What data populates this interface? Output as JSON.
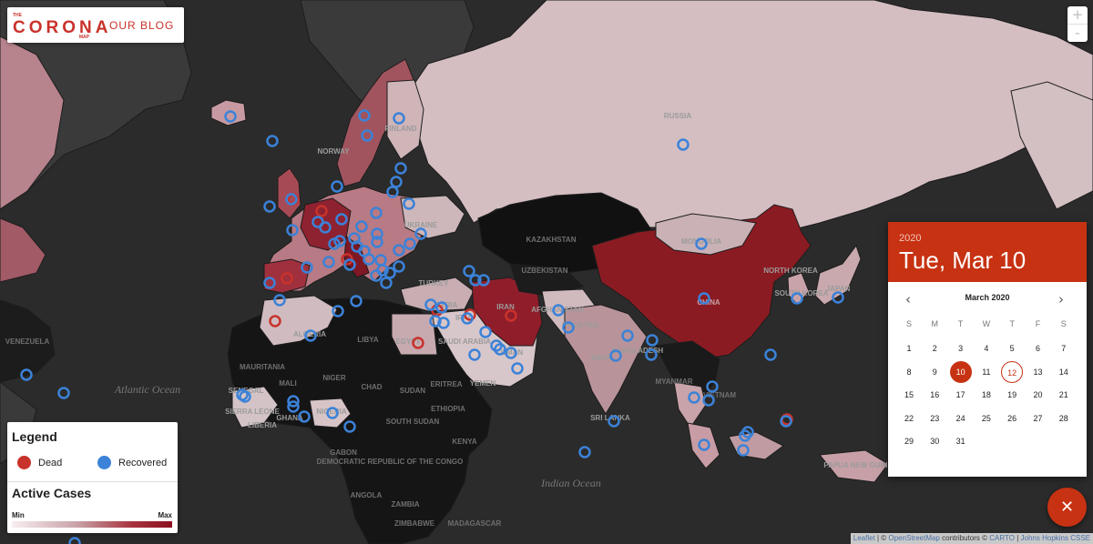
{
  "brand": {
    "logo_top": "THE",
    "logo_word": "CORONA",
    "logo_bottom": "MAP",
    "blog_label": "OUR BLOG"
  },
  "zoom": {
    "in_label": "+",
    "out_label": "-"
  },
  "legend": {
    "title": "Legend",
    "dead_label": "Dead",
    "recovered_label": "Recovered",
    "dead_color": "#c9322b",
    "recovered_color": "#3b82d8",
    "active_title": "Active Cases",
    "min_label": "Min",
    "max_label": "Max"
  },
  "map_labels": {
    "russia": "RUSSIA",
    "norway": "NORWAY",
    "finland": "FINLAND",
    "kazakhstan": "KAZAKHSTAN",
    "mongolia": "MONGOLIA",
    "uzbekistan": "UZBEKISTAN",
    "turkey": "TURKEY",
    "afghanistan": "AFGHANISTAN",
    "pakistan": "PAKISTAN",
    "india": "INDIA",
    "china": "CHINA",
    "north_korea": "NORTH KOREA",
    "south_korea": "SOUTH KOREA",
    "japan": "JAPAN",
    "ukraine": "UKRAINE",
    "syria": "SYRIA",
    "iraq": "IRAQ",
    "iran": "IRAN",
    "saudi": "SAUDI ARABIA",
    "yemen": "YEMEN",
    "oman": "OMAN",
    "egypt": "EGYPT",
    "libya": "LIBYA",
    "algeria": "ALGERIA",
    "mauritania": "MAURITANIA",
    "mali": "MALI",
    "niger": "NIGER",
    "chad": "CHAD",
    "sudan": "SUDAN",
    "south_sudan": "SOUTH SUDAN",
    "ethiopia": "ETHIOPIA",
    "eritrea": "ERITREA",
    "nigeria": "NIGERIA",
    "ghana": "GHANA",
    "sierra_leone": "SIERRA LEONE",
    "liberia": "LIBERIA",
    "senegal": "SENEGAL",
    "gabon": "GABON",
    "drc": "DEMOCRATIC REPUBLIC OF THE CONGO",
    "angola": "ANGOLA",
    "zambia": "ZAMBIA",
    "zimbabwe": "ZIMBABWE",
    "madagascar": "MADAGASCAR",
    "kenya": "KENYA",
    "bangladesh": "BANGLADESH",
    "myanmar": "MYANMAR",
    "vietnam": "VIETNAM",
    "sri_lanka": "SRI LANKA",
    "papua": "PAPUA NEW GUINEA",
    "venezuela": "VENEZUELA",
    "atlantic": "Atlantic Ocean",
    "indian": "Indian Ocean"
  },
  "datepicker": {
    "year": "2020",
    "date_display": "Tue, Mar 10",
    "month_title": "March 2020",
    "prev_icon": "chevron-left-icon",
    "next_icon": "chevron-right-icon",
    "weekdays": [
      "S",
      "M",
      "T",
      "W",
      "T",
      "F",
      "S"
    ],
    "first_weekday_offset": 0,
    "days": [
      "1",
      "2",
      "3",
      "4",
      "5",
      "6",
      "7",
      "8",
      "9",
      "10",
      "11",
      "12",
      "13",
      "14",
      "15",
      "16",
      "17",
      "18",
      "19",
      "20",
      "21",
      "22",
      "23",
      "24",
      "25",
      "26",
      "27",
      "28",
      "29",
      "30",
      "31"
    ],
    "selected_day": "10",
    "today_day": "12",
    "accent_color": "#c73212"
  },
  "fab": {
    "icon": "close-icon",
    "glyph": "✕"
  },
  "attribution": {
    "leaflet": "Leaflet",
    "sep1": " | © ",
    "osm": "OpenStreetMap",
    "contrib": " contributors © ",
    "carto": "CARTO",
    "sep2": " | ",
    "jhu": "Johns Hopkins CSSE"
  }
}
